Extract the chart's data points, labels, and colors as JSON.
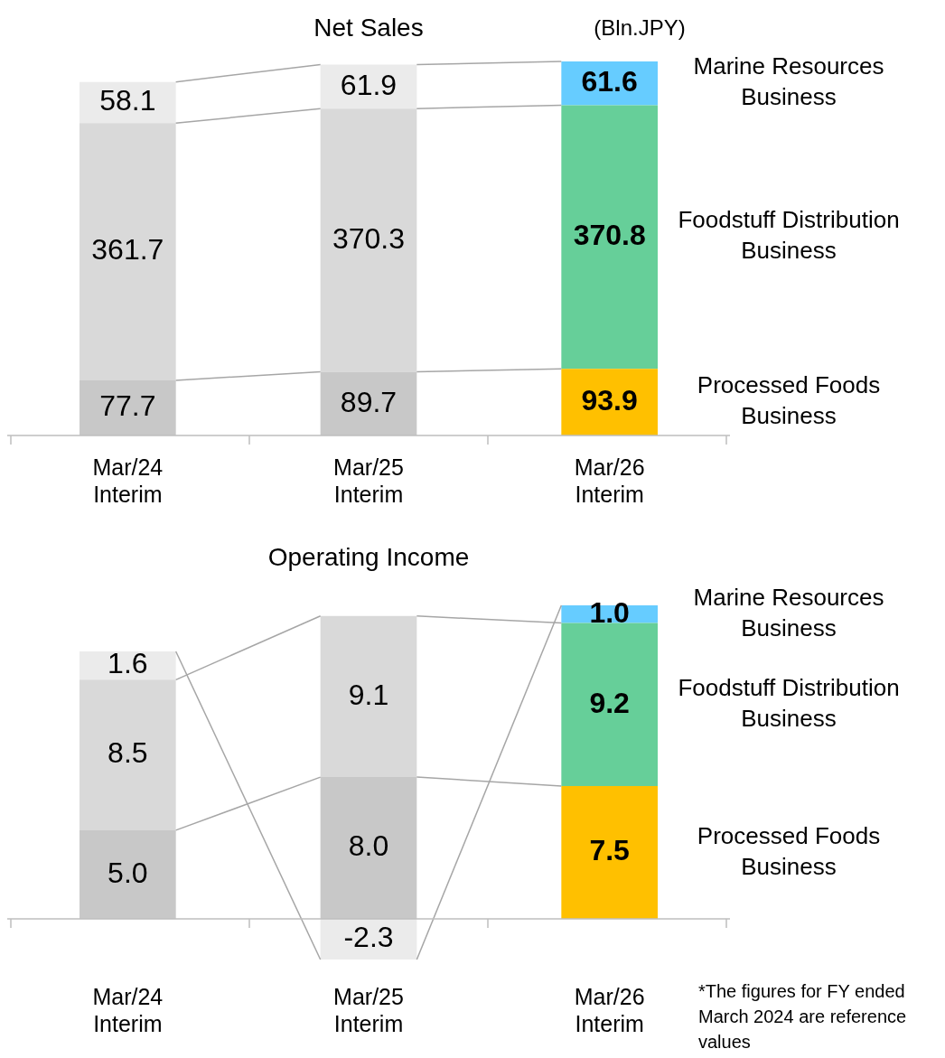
{
  "chart_data": [
    {
      "type": "bar",
      "title": "Net Sales",
      "stacked": true,
      "data_labels": true,
      "categories": [
        "Mar/24 Interim",
        "Mar/25 Interim",
        "Mar/26 Interim"
      ],
      "annotations": [
        "(Bln.JPY)"
      ],
      "series": [
        {
          "name": "Processed Foods Business",
          "values": [
            77.7,
            89.7,
            93.9
          ],
          "colors": [
            "#c8c8c8",
            "#c8c8c8",
            "#ffc000"
          ]
        },
        {
          "name": "Foodstuff Distribution Business",
          "values": [
            361.7,
            370.3,
            370.8
          ],
          "colors": [
            "#d9d9d9",
            "#d9d9d9",
            "#66cf99"
          ]
        },
        {
          "name": "Marine Resources Business",
          "values": [
            58.1,
            61.9,
            61.6
          ],
          "colors": [
            "#ebebeb",
            "#ebebeb",
            "#66ccff"
          ]
        }
      ]
    },
    {
      "type": "bar",
      "title": "Operating Income",
      "stacked": true,
      "categories": [
        "Mar/24 Interim",
        "Mar/25 Interim",
        "Mar/26 Interim"
      ],
      "annotations": [
        "*The figures for FY ended March 2024 are reference values"
      ],
      "series": [
        {
          "name": "Processed Foods Business",
          "values": [
            5.0,
            8.0,
            7.5
          ],
          "value_labels": [
            "5.0",
            "8.0",
            "7.5"
          ],
          "colors": [
            "#c8c8c8",
            "#c8c8c8",
            "#ffc000"
          ]
        },
        {
          "name": "Foodstuff Distribution Business",
          "values": [
            8.5,
            9.1,
            9.2
          ],
          "value_labels": [
            "8.5",
            "9.1",
            "9.2"
          ],
          "colors": [
            "#d9d9d9",
            "#d9d9d9",
            "#66cf99"
          ]
        },
        {
          "name": "Marine Resources Business",
          "values": [
            1.6,
            -2.3,
            1.0
          ],
          "value_labels": [
            "1.6",
            "-2.3",
            "1.0"
          ],
          "colors": [
            "#ebebeb",
            "#ebebeb",
            "#66ccff"
          ]
        }
      ]
    }
  ]
}
